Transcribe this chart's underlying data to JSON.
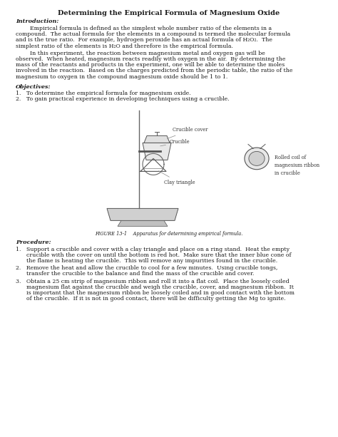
{
  "title": "Determining the Empirical Formula of Magnesium Oxide",
  "intro_label": "Introduction:",
  "obj_label": "Objectives:",
  "obj1": "1.   To determine the empirical formula for magnesium oxide.",
  "obj2": "2.   To gain practical experience in developing techniques using a crucible.",
  "figure_caption": "FIGURE 13-1    Apparatus for determining empirical formula.",
  "proc_label": "Procedure:",
  "bg_color": "#ffffff",
  "text_color": "#1a1a1a",
  "title_fontsize": 7.0,
  "body_fontsize": 5.6,
  "label_fontsize": 5.8,
  "intro_p1_lines": [
    "        Empirical formula is defined as the simplest whole number ratio of the elements in a",
    "compound.  The actual formula for the elements in a compound is termed the molecular formula",
    "and is the true ratio.  For example, hydrogen peroxide has an actual formula of H₂O₂.  The",
    "simplest ratio of the elements is H₂O and therefore is the empirical formula."
  ],
  "intro_p2_lines": [
    "        In this experiment, the reaction between magnesium metal and oxygen gas will be",
    "observed.  When heated, magnesium reacts readily with oxygen in the air.  By determining the",
    "mass of the reactants and products in the experiment, one will be able to determine the moles",
    "involved in the reaction.  Based on the charges predicted from the periodic table, the ratio of the",
    "magnesium to oxygen in the compound magnesium oxide should be 1 to 1."
  ],
  "proc1_lines": [
    "1.   Support a crucible and cover with a clay triangle and place on a ring stand.  Heat the empty",
    "      crucible with the cover on until the bottom is red hot.  Make sure that the inner blue cone of",
    "      the flame is heating the crucible.  This will remove any impurities found in the crucible."
  ],
  "proc2_lines": [
    "2.   Remove the heat and allow the crucible to cool for a few minutes.  Using crucible tongs,",
    "      transfer the crucible to the balance and find the mass of the crucible and cover."
  ],
  "proc3_lines": [
    "3.   Obtain a 25 cm strip of magnesium ribbon and roll it into a flat coil.  Place the loosely coiled",
    "      magnesium flat against the crucible and weigh the crucible, cover, and magnesium ribbon.  It",
    "      is important that the magnesium ribbon be loosely coiled and in good contact with the bottom",
    "      of the crucible.  If it is not in good contact, there will be difficulty getting the Mg to ignite."
  ]
}
